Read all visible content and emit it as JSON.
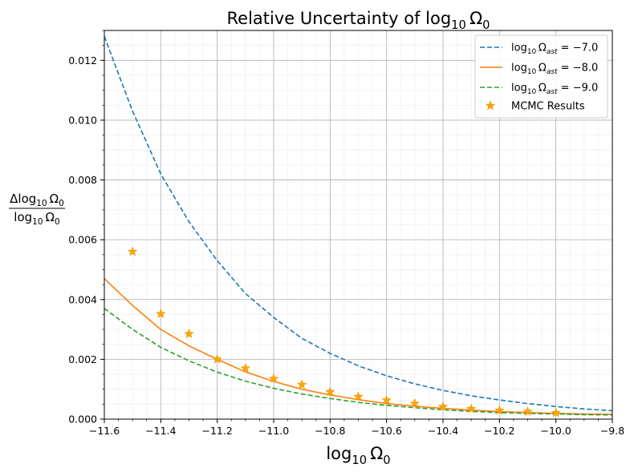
{
  "chart_data": {
    "type": "line",
    "title": "Relative Uncertainty of log₁₀ Ω₀",
    "title_parts": {
      "main": "Relative Uncertainty of log",
      "sub": "10",
      "symbol": "Ω",
      "symbol_sub": "0"
    },
    "xlabel": "log₁₀ Ω₀",
    "xlabel_parts": {
      "main": "log",
      "sub": "10",
      "symbol": "Ω",
      "symbol_sub": "0"
    },
    "ylabel": "Δlog₁₀ Ω₀ / log₁₀ Ω₀",
    "ylabel_parts": {
      "num_main": "Δlog",
      "den_main": "log",
      "sub": "10",
      "symbol": "Ω",
      "symbol_sub": "0"
    },
    "xlim": [
      -11.6,
      -9.8
    ],
    "ylim": [
      0,
      0.013
    ],
    "x_ticks": [
      -11.6,
      -11.4,
      -11.2,
      -11.0,
      -10.8,
      -10.6,
      -10.4,
      -10.2,
      -10.0,
      -9.8
    ],
    "x_tick_labels": [
      "−11.6",
      "−11.4",
      "−11.2",
      "−11.0",
      "−10.8",
      "−10.6",
      "−10.4",
      "−10.2",
      "−10.0",
      "−9.8"
    ],
    "y_ticks": [
      0,
      0.002,
      0.004,
      0.006,
      0.008,
      0.01,
      0.012
    ],
    "y_tick_labels": [
      "0.000",
      "0.002",
      "0.004",
      "0.006",
      "0.008",
      "0.010",
      "0.012"
    ],
    "grid": {
      "major": true,
      "minor": true
    },
    "legend_position": "top-right",
    "x": [
      -11.6,
      -11.5,
      -11.4,
      -11.3,
      -11.2,
      -11.1,
      -11.0,
      -10.9,
      -10.8,
      -10.7,
      -10.6,
      -10.5,
      -10.4,
      -10.3,
      -10.2,
      -10.1,
      -10.0,
      -9.9,
      -9.8
    ],
    "series": [
      {
        "name": "log₁₀ Ωast = −7.0",
        "legend_parts": {
          "main": "log",
          "sub": "10",
          "symbol": "Ω",
          "symbol_sub": "ast",
          "value": " = −7.0"
        },
        "style": "dashed",
        "color": "#1f77b4",
        "values": [
          0.0128,
          0.0103,
          0.0082,
          0.0066,
          0.0053,
          0.0042,
          0.0034,
          0.0027,
          0.0022,
          0.00178,
          0.00145,
          0.00118,
          0.00096,
          0.00078,
          0.00064,
          0.00052,
          0.00042,
          0.00034,
          0.00028
        ]
      },
      {
        "name": "log₁₀ Ωast = −8.0",
        "legend_parts": {
          "main": "log",
          "sub": "10",
          "symbol": "Ω",
          "symbol_sub": "ast",
          "value": " = −8.0"
        },
        "style": "solid",
        "color": "#ff7f0e",
        "values": [
          0.0047,
          0.0038,
          0.003,
          0.00245,
          0.002,
          0.00158,
          0.00126,
          0.001,
          0.00081,
          0.00065,
          0.00052,
          0.00043,
          0.00036,
          0.0003,
          0.00025,
          0.00022,
          0.00019,
          0.00017,
          0.00016
        ]
      },
      {
        "name": "log₁₀ Ωast = −9.0",
        "legend_parts": {
          "main": "log",
          "sub": "10",
          "symbol": "Ω",
          "symbol_sub": "ast",
          "value": " = −9.0"
        },
        "style": "dashed",
        "color": "#2ca02c",
        "values": [
          0.0037,
          0.003,
          0.0024,
          0.00195,
          0.00157,
          0.00127,
          0.00103,
          0.00084,
          0.00069,
          0.00056,
          0.00046,
          0.00038,
          0.00031,
          0.00026,
          0.00022,
          0.00019,
          0.00017,
          0.00015,
          0.00014
        ]
      }
    ],
    "scatter": {
      "name": "MCMC Results",
      "marker": "star",
      "color": "#ffa500",
      "x": [
        -11.5,
        -11.4,
        -11.3,
        -11.2,
        -11.1,
        -11.0,
        -10.9,
        -10.8,
        -10.7,
        -10.6,
        -10.5,
        -10.4,
        -10.3,
        -10.2,
        -10.1,
        -10.0
      ],
      "y": [
        0.0056,
        0.00352,
        0.00285,
        0.002,
        0.0017,
        0.00135,
        0.00115,
        0.00091,
        0.00075,
        0.00063,
        0.00052,
        0.00041,
        0.00034,
        0.00029,
        0.00025,
        0.00021
      ]
    }
  }
}
